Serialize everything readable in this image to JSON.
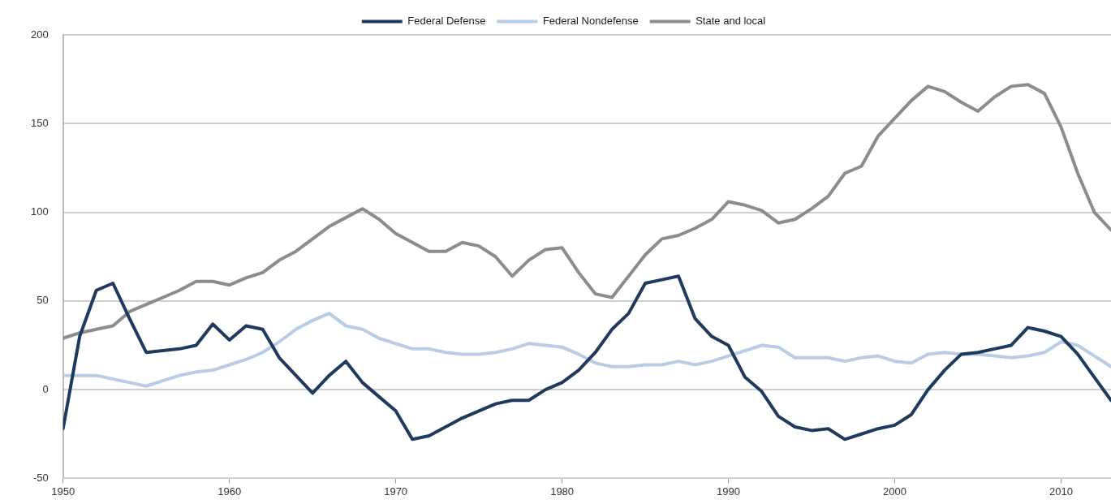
{
  "chart_data": {
    "type": "line",
    "x": [
      1950,
      1951,
      1952,
      1953,
      1954,
      1955,
      1956,
      1957,
      1958,
      1959,
      1960,
      1961,
      1962,
      1963,
      1964,
      1965,
      1966,
      1967,
      1968,
      1969,
      1970,
      1971,
      1972,
      1973,
      1974,
      1975,
      1976,
      1977,
      1978,
      1979,
      1980,
      1981,
      1982,
      1983,
      1984,
      1985,
      1986,
      1987,
      1988,
      1989,
      1990,
      1991,
      1992,
      1993,
      1994,
      1995,
      1996,
      1997,
      1998,
      1999,
      2000,
      2001,
      2002,
      2003,
      2004,
      2005,
      2006,
      2007,
      2008,
      2009,
      2010,
      2011,
      2012,
      2013
    ],
    "series": [
      {
        "name": "Federal Defense",
        "color": "#1f3a5f",
        "values": [
          -22,
          30,
          56,
          60,
          40,
          21,
          22,
          23,
          25,
          37,
          28,
          36,
          34,
          18,
          8,
          -2,
          8,
          16,
          4,
          -4,
          -12,
          -28,
          -26,
          -21,
          -16,
          -12,
          -8,
          -6,
          -6,
          0,
          4,
          11,
          21,
          34,
          43,
          60,
          62,
          64,
          40,
          30,
          25,
          7,
          -1,
          -15,
          -21,
          -23,
          -22,
          -28,
          -25,
          -22,
          -20,
          -14,
          0,
          11,
          20,
          21,
          23,
          25,
          35,
          33,
          30,
          20,
          7,
          -6
        ]
      },
      {
        "name": "Federal Nondefense",
        "color": "#b8cce4",
        "values": [
          8,
          8,
          8,
          6,
          4,
          2,
          5,
          8,
          10,
          11,
          14,
          17,
          21,
          27,
          34,
          39,
          43,
          36,
          34,
          29,
          26,
          23,
          23,
          21,
          20,
          20,
          21,
          23,
          26,
          25,
          24,
          20,
          15,
          13,
          13,
          14,
          14,
          16,
          14,
          16,
          19,
          22,
          25,
          24,
          18,
          18,
          18,
          16,
          18,
          19,
          16,
          15,
          20,
          21,
          20,
          20,
          19,
          18,
          19,
          21,
          27,
          25,
          19,
          13
        ]
      },
      {
        "name": "State and local",
        "color": "#8c8c8c",
        "values": [
          29,
          32,
          34,
          36,
          44,
          48,
          52,
          56,
          61,
          61,
          59,
          63,
          66,
          73,
          78,
          85,
          92,
          97,
          102,
          96,
          88,
          83,
          78,
          78,
          83,
          81,
          75,
          64,
          73,
          79,
          80,
          66,
          54,
          52,
          64,
          76,
          85,
          87,
          91,
          96,
          106,
          104,
          101,
          94,
          96,
          102,
          109,
          122,
          126,
          143,
          153,
          163,
          171,
          168,
          162,
          157,
          165,
          171,
          172,
          167,
          148,
          122,
          100,
          90
        ]
      }
    ],
    "xlim": [
      1950,
      2013
    ],
    "xticks": [
      1950,
      1960,
      1970,
      1980,
      1990,
      2000,
      2010
    ],
    "ylim": [
      -50,
      200
    ],
    "yticks": [
      -50,
      0,
      50,
      100,
      150,
      200
    ],
    "grid": "y",
    "legend": "top",
    "marker": "none",
    "line_style": "solid"
  }
}
